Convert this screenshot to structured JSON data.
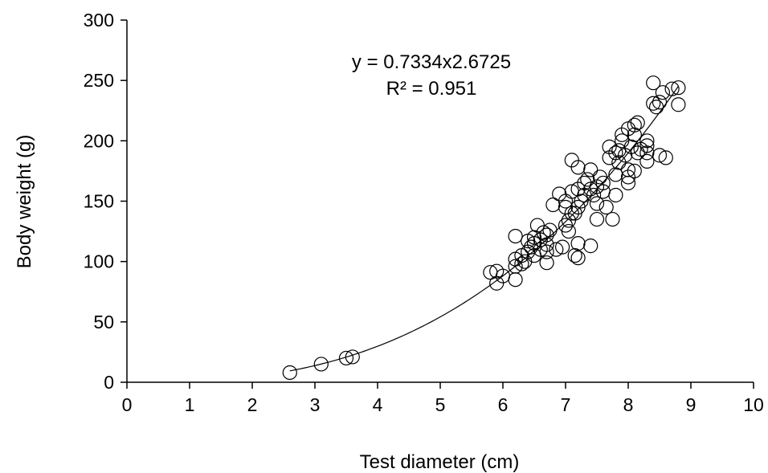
{
  "chart_data": {
    "type": "scatter",
    "title": "",
    "xlabel": "Test diameter (cm)",
    "ylabel": "Body weight  (g)",
    "xlim": [
      0,
      10
    ],
    "ylim": [
      0,
      300
    ],
    "x_ticks": [
      0,
      1,
      2,
      3,
      4,
      5,
      6,
      7,
      8,
      9,
      10
    ],
    "y_ticks": [
      0,
      50,
      100,
      150,
      200,
      250,
      300
    ],
    "grid": false,
    "legend": "none",
    "marker": "open-circle",
    "trendline": {
      "type": "power",
      "a": 0.7334,
      "b": 2.6725,
      "x_range": [
        2.6,
        8.8
      ],
      "equation": "y = 0.7334x2.6725",
      "r_squared": "R² = 0.951"
    },
    "points": [
      [
        2.6,
        8
      ],
      [
        3.1,
        15
      ],
      [
        3.5,
        20
      ],
      [
        3.6,
        21
      ],
      [
        5.8,
        91
      ],
      [
        5.9,
        92
      ],
      [
        5.9,
        82
      ],
      [
        6.0,
        88
      ],
      [
        6.2,
        85
      ],
      [
        6.2,
        96
      ],
      [
        6.2,
        102
      ],
      [
        6.2,
        121
      ],
      [
        6.3,
        98
      ],
      [
        6.3,
        105
      ],
      [
        6.35,
        100
      ],
      [
        6.4,
        108
      ],
      [
        6.4,
        117
      ],
      [
        6.45,
        112
      ],
      [
        6.5,
        105
      ],
      [
        6.5,
        115
      ],
      [
        6.5,
        120
      ],
      [
        6.55,
        130
      ],
      [
        6.6,
        110
      ],
      [
        6.6,
        118
      ],
      [
        6.65,
        124
      ],
      [
        6.7,
        99
      ],
      [
        6.7,
        108
      ],
      [
        6.7,
        114
      ],
      [
        6.7,
        122
      ],
      [
        6.75,
        126
      ],
      [
        6.8,
        147
      ],
      [
        6.85,
        110
      ],
      [
        6.9,
        156
      ],
      [
        6.95,
        112
      ],
      [
        7.0,
        130
      ],
      [
        7.0,
        145
      ],
      [
        7.0,
        150
      ],
      [
        7.05,
        134
      ],
      [
        7.05,
        125
      ],
      [
        7.1,
        140
      ],
      [
        7.1,
        158
      ],
      [
        7.1,
        184
      ],
      [
        7.15,
        105
      ],
      [
        7.15,
        140
      ],
      [
        7.2,
        103
      ],
      [
        7.2,
        115
      ],
      [
        7.2,
        145
      ],
      [
        7.2,
        160
      ],
      [
        7.2,
        178
      ],
      [
        7.25,
        150
      ],
      [
        7.3,
        155
      ],
      [
        7.3,
        165
      ],
      [
        7.35,
        168
      ],
      [
        7.4,
        113
      ],
      [
        7.4,
        160
      ],
      [
        7.4,
        176
      ],
      [
        7.45,
        155
      ],
      [
        7.5,
        135
      ],
      [
        7.5,
        148
      ],
      [
        7.5,
        162
      ],
      [
        7.55,
        170
      ],
      [
        7.6,
        158
      ],
      [
        7.6,
        165
      ],
      [
        7.65,
        145
      ],
      [
        7.7,
        186
      ],
      [
        7.7,
        195
      ],
      [
        7.75,
        135
      ],
      [
        7.8,
        155
      ],
      [
        7.8,
        172
      ],
      [
        7.8,
        190
      ],
      [
        7.85,
        182
      ],
      [
        7.85,
        192
      ],
      [
        7.9,
        200
      ],
      [
        7.9,
        205
      ],
      [
        7.95,
        188
      ],
      [
        8.0,
        165
      ],
      [
        8.0,
        170
      ],
      [
        8.0,
        176
      ],
      [
        8.0,
        210
      ],
      [
        8.05,
        195
      ],
      [
        8.1,
        175
      ],
      [
        8.1,
        205
      ],
      [
        8.1,
        213
      ],
      [
        8.15,
        190
      ],
      [
        8.15,
        215
      ],
      [
        8.2,
        193
      ],
      [
        8.3,
        183
      ],
      [
        8.3,
        190
      ],
      [
        8.3,
        196
      ],
      [
        8.3,
        200
      ],
      [
        8.4,
        231
      ],
      [
        8.4,
        248
      ],
      [
        8.45,
        228
      ],
      [
        8.5,
        232
      ],
      [
        8.5,
        188
      ],
      [
        8.55,
        240
      ],
      [
        8.6,
        186
      ],
      [
        8.7,
        243
      ],
      [
        8.8,
        230
      ],
      [
        8.8,
        244
      ]
    ]
  }
}
